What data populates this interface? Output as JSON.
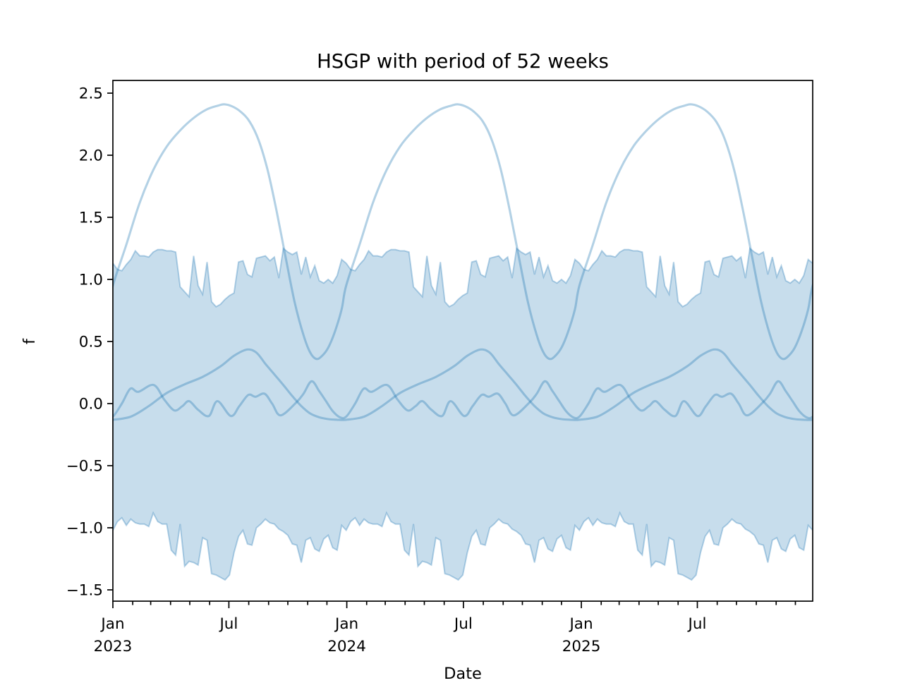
{
  "figure": {
    "title": "HSGP with period of 52 weeks",
    "xlabel": "Date",
    "ylabel": "f"
  },
  "style": {
    "base_color": "#1f77b4",
    "line_alpha": 0.34,
    "band_fill_alpha": 0.25,
    "band_edge_alpha": 0.32,
    "axis_color": "#000000",
    "background": "#ffffff"
  },
  "chart_data": {
    "type": "line",
    "title": "HSGP with period of 52 weeks",
    "xlabel": "Date",
    "ylabel": "f",
    "x_unit": "weeks since Jan 2023",
    "n_weeks": 156,
    "period_weeks": 52,
    "ylim": [
      -1.59,
      2.6
    ],
    "yticks": [
      -1.5,
      -1.0,
      -0.5,
      0.0,
      0.5,
      1.0,
      1.5,
      2.0,
      2.5
    ],
    "grid": false,
    "legend": null,
    "x_axis": {
      "month_tick_days": [
        0,
        31,
        59,
        90,
        120,
        151,
        181,
        212,
        243,
        273,
        304,
        334,
        365,
        396,
        425,
        456,
        486,
        517,
        547,
        578,
        609,
        639,
        670,
        700,
        731,
        762,
        790,
        821,
        851,
        882,
        912,
        943,
        973,
        1004,
        1035,
        1065
      ],
      "major_every_months": 6,
      "major_tick_labels": [
        [
          "Jan",
          "2023"
        ],
        [
          "Jul"
        ],
        [
          "Jan",
          "2024"
        ],
        [
          "Jul"
        ],
        [
          "Jan",
          "2025"
        ],
        [
          "Jul"
        ]
      ]
    },
    "band": {
      "name": "credible-interval-band",
      "repeats": 3,
      "annual_upper_weekly": [
        1.13,
        1.08,
        1.07,
        1.12,
        1.16,
        1.23,
        1.19,
        1.19,
        1.18,
        1.22,
        1.24,
        1.24,
        1.23,
        1.23,
        1.22,
        0.94,
        0.9,
        0.86,
        1.19,
        0.95,
        0.88,
        1.14,
        0.82,
        0.78,
        0.8,
        0.84,
        0.87,
        0.89,
        1.14,
        1.15,
        1.04,
        1.02,
        1.17,
        1.18,
        1.19,
        1.15,
        1.18,
        1.01,
        1.25,
        1.22,
        1.2,
        1.22,
        1.04,
        1.18,
        1.02,
        1.11,
        0.99,
        0.97,
        1.0,
        0.97,
        1.03,
        1.16
      ],
      "annual_lower_weekly": [
        -1.02,
        -0.95,
        -0.92,
        -0.98,
        -0.93,
        -0.96,
        -0.97,
        -0.97,
        -0.99,
        -0.88,
        -0.95,
        -0.97,
        -0.97,
        -1.18,
        -1.22,
        -0.97,
        -1.31,
        -1.27,
        -1.28,
        -1.3,
        -1.08,
        -1.1,
        -1.37,
        -1.38,
        -1.4,
        -1.42,
        -1.38,
        -1.2,
        -1.07,
        -1.02,
        -1.13,
        -1.14,
        -1.0,
        -0.97,
        -0.93,
        -0.96,
        -0.97,
        -1.01,
        -1.03,
        -1.06,
        -1.13,
        -1.14,
        -1.28,
        -1.1,
        -1.08,
        -1.17,
        -1.19,
        -1.09,
        -1.06,
        -1.16,
        -1.18,
        -0.98
      ]
    },
    "series": [
      {
        "name": "gp-sample-large-seasonal",
        "annual_knots_week_value": [
          [
            0,
            0.95
          ],
          [
            3,
            1.28
          ],
          [
            6,
            1.62
          ],
          [
            9,
            1.88
          ],
          [
            12,
            2.07
          ],
          [
            15,
            2.2
          ],
          [
            18,
            2.3
          ],
          [
            21,
            2.37
          ],
          [
            23.5,
            2.4
          ],
          [
            24.8,
            2.41
          ],
          [
            26.5,
            2.395
          ],
          [
            28.5,
            2.35
          ],
          [
            30.5,
            2.27
          ],
          [
            32.5,
            2.12
          ],
          [
            34.5,
            1.88
          ],
          [
            36.5,
            1.55
          ],
          [
            38.5,
            1.18
          ],
          [
            40.5,
            0.82
          ],
          [
            42.5,
            0.55
          ],
          [
            44,
            0.41
          ],
          [
            45.3,
            0.36
          ],
          [
            46.5,
            0.38
          ],
          [
            48,
            0.45
          ],
          [
            49.5,
            0.58
          ],
          [
            51,
            0.76
          ]
        ]
      },
      {
        "name": "gp-sample-medium-seasonal",
        "annual_knots_week_value": [
          [
            0,
            -0.13
          ],
          [
            4,
            -0.105
          ],
          [
            8,
            -0.02
          ],
          [
            12,
            0.085
          ],
          [
            16,
            0.155
          ],
          [
            20,
            0.215
          ],
          [
            24,
            0.3
          ],
          [
            27,
            0.385
          ],
          [
            29.9,
            0.435
          ],
          [
            32,
            0.41
          ],
          [
            34,
            0.32
          ],
          [
            36,
            0.235
          ],
          [
            38,
            0.15
          ],
          [
            40,
            0.06
          ],
          [
            42,
            -0.02
          ],
          [
            44,
            -0.08
          ],
          [
            46,
            -0.11
          ],
          [
            48,
            -0.125
          ],
          [
            50,
            -0.13
          ]
        ]
      },
      {
        "name": "gp-sample-wiggly",
        "annual_knots_week_value": [
          [
            0,
            -0.105
          ],
          [
            2,
            0.0
          ],
          [
            3.9,
            0.12
          ],
          [
            5.7,
            0.095
          ],
          [
            9.1,
            0.15
          ],
          [
            11.5,
            0.03
          ],
          [
            13.7,
            -0.055
          ],
          [
            15.5,
            -0.02
          ],
          [
            17,
            0.02
          ],
          [
            19,
            -0.05
          ],
          [
            21.4,
            -0.1
          ],
          [
            23.3,
            0.02
          ],
          [
            26.3,
            -0.1
          ],
          [
            28.2,
            -0.02
          ],
          [
            30.2,
            0.07
          ],
          [
            31.8,
            0.055
          ],
          [
            33.8,
            0.08
          ],
          [
            35.5,
            0.0
          ],
          [
            37.4,
            -0.095
          ],
          [
            40.9,
            0.01
          ],
          [
            42.5,
            0.08
          ],
          [
            44.3,
            0.18
          ],
          [
            46,
            0.1
          ],
          [
            47.5,
            0.02
          ],
          [
            49,
            -0.06
          ],
          [
            50.6,
            -0.11
          ]
        ]
      }
    ]
  }
}
